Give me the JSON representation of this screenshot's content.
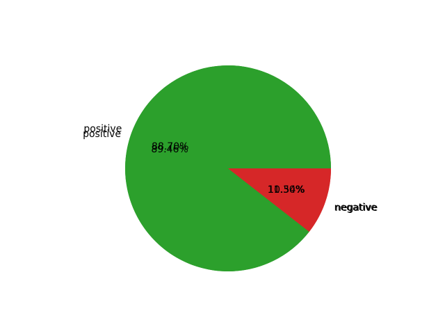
{
  "chart_data": [
    {
      "type": "pie",
      "categories": [
        "positive",
        "negative"
      ],
      "values": [
        88.7,
        11.3
      ],
      "value_labels": [
        "88.70%",
        "11.30%"
      ],
      "colors": [
        "#2ca02c",
        "#d62728"
      ],
      "start_angle_deg": 0,
      "direction": "counterclockwise"
    },
    {
      "type": "pie",
      "categories": [
        "positive",
        "negative"
      ],
      "values": [
        89.46,
        10.54
      ],
      "value_labels": [
        "89.46%",
        "10.54%"
      ],
      "colors": [
        "#2ca02c",
        "#d62728"
      ],
      "start_angle_deg": 0,
      "direction": "counterclockwise"
    }
  ]
}
